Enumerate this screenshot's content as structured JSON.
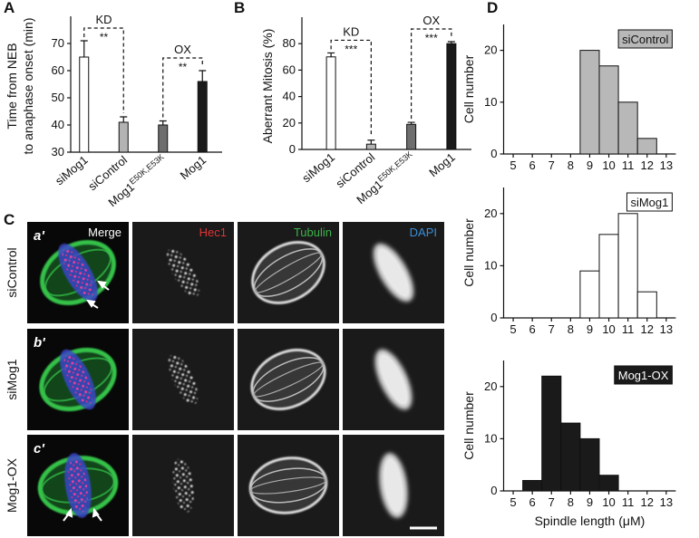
{
  "chart_data": [
    {
      "type": "bar",
      "panel_label": "A",
      "ylabel": [
        "Time from NEB",
        "to anaphase onset (min)"
      ],
      "categories": [
        "siMog1",
        "siControl",
        "Mog1",
        "Mog1"
      ],
      "category_superscripts": [
        null,
        null,
        "E50K,E53K",
        null
      ],
      "values": [
        65,
        41,
        40,
        56
      ],
      "errors": [
        6,
        2,
        1.5,
        4
      ],
      "colors": [
        "#ffffff",
        "#b3b3b3",
        "#6e6e6e",
        "#1a1a1a"
      ],
      "ylim": [
        30,
        80
      ],
      "yticks": [
        30,
        40,
        50,
        60,
        70
      ],
      "annotations": [
        "KD",
        "**",
        "OX",
        "**"
      ]
    },
    {
      "type": "bar",
      "panel_label": "B",
      "ylabel": "Aberrant Mitosis (%)",
      "categories": [
        "siMog1",
        "siControl",
        "Mog1",
        "Mog1"
      ],
      "category_superscripts": [
        null,
        null,
        "E50K,E53K",
        null
      ],
      "values": [
        70,
        4,
        19,
        80
      ],
      "errors": [
        3,
        3,
        1.5,
        1.5
      ],
      "colors": [
        "#ffffff",
        "#b3b3b3",
        "#6e6e6e",
        "#1a1a1a"
      ],
      "ylim": [
        0,
        100
      ],
      "yticks": [
        0,
        20,
        40,
        60,
        80
      ],
      "annotations": [
        "KD",
        "***",
        "OX",
        "***"
      ]
    },
    {
      "type": "histogram",
      "panel_label": "D",
      "ylabel": "Cell number",
      "legend_label": "siControl",
      "color": "#b8b8b8",
      "bins": [
        8.5,
        9.5,
        10.5,
        11.5,
        12.5
      ],
      "values": [
        20,
        17,
        10,
        3
      ],
      "xlim": [
        4.5,
        13.5
      ],
      "xticks": [
        5,
        6,
        7,
        8,
        9,
        10,
        11,
        12,
        13
      ],
      "ylim": [
        0,
        25
      ],
      "yticks": [
        0,
        10,
        20
      ]
    },
    {
      "type": "histogram",
      "ylabel": "Cell number",
      "legend_label": "siMog1",
      "color": "#ffffff",
      "bins": [
        8.5,
        9.5,
        10.5,
        11.5,
        12.5
      ],
      "values": [
        9,
        16,
        20,
        5
      ],
      "xlim": [
        4.5,
        13.5
      ],
      "xticks": [
        5,
        6,
        7,
        8,
        9,
        10,
        11,
        12,
        13
      ],
      "ylim": [
        0,
        25
      ],
      "yticks": [
        0,
        10,
        20
      ]
    },
    {
      "type": "histogram",
      "ylabel": "Cell number",
      "legend_label": "Mog1-OX",
      "color": "#1a1a1a",
      "xlabel": "Spindle length (μM)",
      "bins": [
        5.5,
        6.5,
        7.5,
        8.5,
        9.5,
        10.5
      ],
      "values": [
        2,
        22,
        13,
        10,
        3
      ],
      "xlim": [
        4.5,
        13.5
      ],
      "xticks": [
        5,
        6,
        7,
        8,
        9,
        10,
        11,
        12,
        13
      ],
      "ylim": [
        0,
        25
      ],
      "yticks": [
        0,
        10,
        20
      ]
    }
  ],
  "micrographs": {
    "panel_label": "C",
    "channels": [
      "Merge",
      "Hec1",
      "Tubulin",
      "DAPI"
    ],
    "channel_colors": [
      "#ffffff",
      "#e03434",
      "#3cb34a",
      "#3a8fd8"
    ],
    "rows": [
      "siControl",
      "siMog1",
      "Mog1-OX"
    ],
    "row_tags": [
      "a'",
      "b'",
      "c'"
    ]
  }
}
